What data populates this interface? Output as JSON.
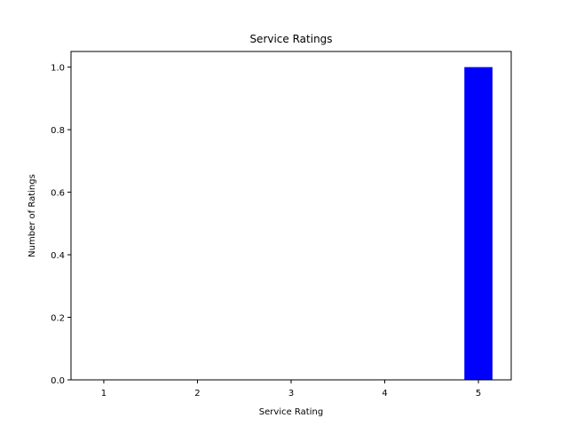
{
  "chart_data": {
    "type": "bar",
    "title": "Service Ratings",
    "xlabel": "Service Rating",
    "ylabel": "Number of Ratings",
    "categories": [
      1,
      2,
      3,
      4,
      5
    ],
    "values": [
      0,
      0,
      0,
      0,
      1
    ],
    "bar_color": "#0000ff",
    "xlim": [
      0.65,
      5.35
    ],
    "ylim": [
      0,
      1.05
    ],
    "xticks": [
      "1",
      "2",
      "3",
      "4",
      "5"
    ],
    "yticks": [
      "0.0",
      "0.2",
      "0.4",
      "0.6",
      "0.8",
      "1.0"
    ],
    "grid": false,
    "legend": false
  }
}
